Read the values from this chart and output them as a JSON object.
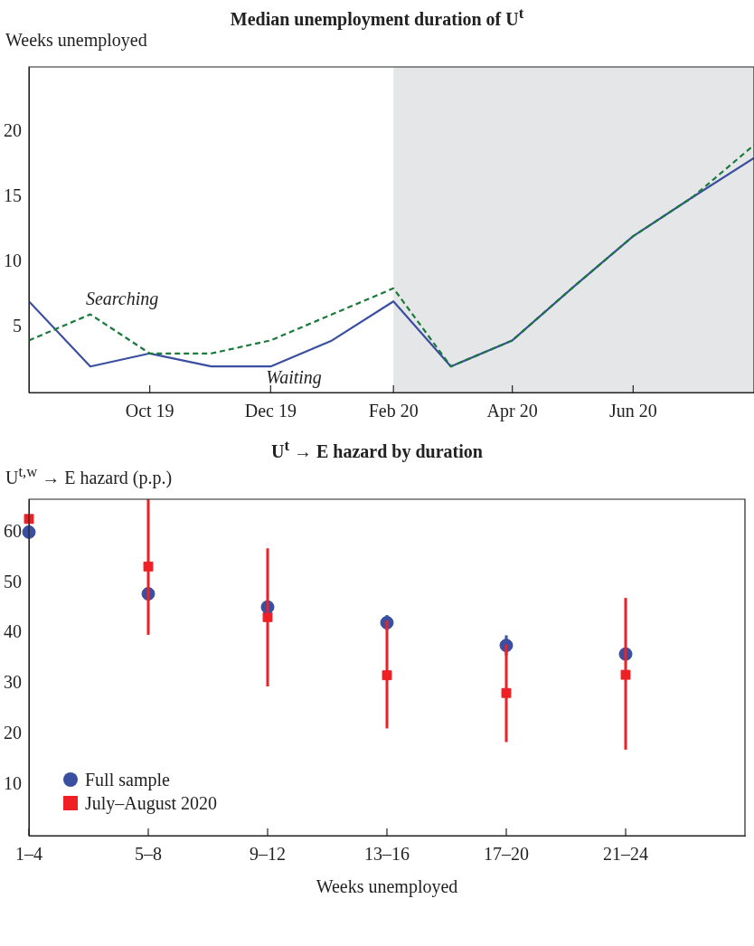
{
  "chart_data": [
    {
      "type": "line",
      "title": "Median unemployment duration of U$^{t}$",
      "ylabel": "Weeks unemployed",
      "x": [
        "2019-08",
        "2019-09",
        "2019-10",
        "2019-11",
        "2019-12",
        "2020-01",
        "2020-02",
        "2020-03",
        "2020-04",
        "2020-05",
        "2020-06",
        "2020-07",
        "2020-08"
      ],
      "xlim": [
        "2019-08",
        "2020-08"
      ],
      "xticks": [
        {
          "value": "2019-10",
          "label": "Oct 19"
        },
        {
          "value": "2019-12",
          "label": "Dec 19"
        },
        {
          "value": "2020-02",
          "label": "Feb 20"
        },
        {
          "value": "2020-04",
          "label": "Apr 20"
        },
        {
          "value": "2020-06",
          "label": "Jun 20"
        }
      ],
      "series": [
        {
          "name": "Searching",
          "color": "#1a7a3a",
          "line_style": "dashed",
          "values": [
            4,
            6,
            3,
            3,
            4,
            6,
            8,
            2,
            4,
            8,
            12,
            15,
            19
          ]
        },
        {
          "name": "Waiting",
          "color": "#3a4fa0",
          "line_style": "solid",
          "values": [
            7,
            2,
            3,
            2,
            2,
            4,
            7,
            2,
            4,
            8,
            12,
            15,
            18
          ]
        }
      ],
      "bands": [
        {
          "axis": "x",
          "from": "2020-02",
          "to": "2020-08",
          "color": "#e5e6e8"
        }
      ],
      "ylim": [
        0,
        25
      ],
      "yticks": [
        5,
        10,
        15,
        20
      ],
      "grid": false,
      "legend": false,
      "marker": "none"
    },
    {
      "type": "scatter",
      "title": "U$^{t}$ → E hazard by duration",
      "ylabel": "U$^{t,w}$ → E hazard (p.p.)",
      "xlabel": "Weeks unemployed",
      "categories": [
        "1–4",
        "5–8",
        "9–12",
        "13–16",
        "17–20",
        "21–24",
        null
      ],
      "series": [
        {
          "name": "Full sample",
          "color": "#3a4fa0",
          "marker": "circle",
          "values": [
            60,
            47.8,
            45.2,
            42.1,
            37.6,
            35.9,
            null
          ],
          "errors": [
            null,
            null,
            null,
            1.5,
            2,
            null,
            null
          ]
        },
        {
          "name": "July–August 2020",
          "color": "#ee2024",
          "marker": "square",
          "values": [
            62.6,
            53.2,
            43.2,
            31.7,
            28.2,
            31.8,
            null
          ],
          "errors": [
            null,
            [
              39.7,
              66.5
            ],
            [
              29.5,
              56.8
            ],
            [
              21.2,
              42.5
            ],
            [
              18.5,
              37.8
            ],
            [
              17,
              47
            ],
            null
          ]
        }
      ],
      "ylim": [
        0,
        66.5
      ],
      "yticks": [
        10,
        20,
        30,
        40,
        50,
        60
      ],
      "grid": false,
      "legend": "bottom left"
    }
  ]
}
